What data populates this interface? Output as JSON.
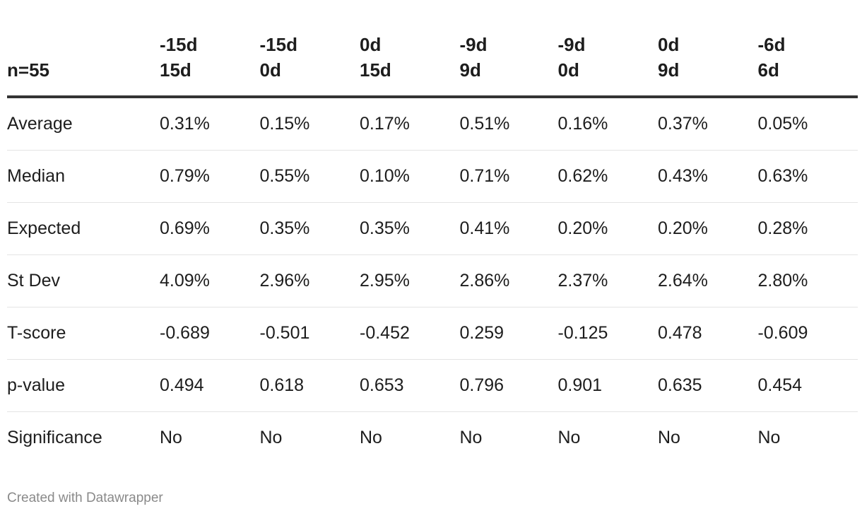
{
  "chart_data": {
    "type": "table",
    "corner_label": "n=55",
    "columns": [
      {
        "line1": "-15d",
        "line2": "15d"
      },
      {
        "line1": "-15d",
        "line2": "0d"
      },
      {
        "line1": "0d",
        "line2": "15d"
      },
      {
        "line1": "-9d",
        "line2": "9d"
      },
      {
        "line1": "-9d",
        "line2": "0d"
      },
      {
        "line1": "0d",
        "line2": "9d"
      },
      {
        "line1": "-6d",
        "line2": "6d"
      }
    ],
    "rows": [
      {
        "label": "Average",
        "values": [
          "0.31%",
          "0.15%",
          "0.17%",
          "0.51%",
          "0.16%",
          "0.37%",
          "0.05%"
        ]
      },
      {
        "label": "Median",
        "values": [
          "0.79%",
          "0.55%",
          "0.10%",
          "0.71%",
          "0.62%",
          "0.43%",
          "0.63%"
        ]
      },
      {
        "label": "Expected",
        "values": [
          "0.69%",
          "0.35%",
          "0.35%",
          "0.41%",
          "0.20%",
          "0.20%",
          "0.28%"
        ]
      },
      {
        "label": "St Dev",
        "values": [
          "4.09%",
          "2.96%",
          "2.95%",
          "2.86%",
          "2.37%",
          "2.64%",
          "2.80%"
        ]
      },
      {
        "label": "T-score",
        "values": [
          "-0.689",
          "-0.501",
          "-0.452",
          "0.259",
          "-0.125",
          "0.478",
          "-0.609"
        ]
      },
      {
        "label": "p-value",
        "values": [
          "0.494",
          "0.618",
          "0.653",
          "0.796",
          "0.901",
          "0.635",
          "0.454"
        ]
      },
      {
        "label": "Significance",
        "values": [
          "No",
          "No",
          "No",
          "No",
          "No",
          "No",
          "No"
        ]
      }
    ]
  },
  "footer": {
    "credit": "Created with Datawrapper"
  }
}
